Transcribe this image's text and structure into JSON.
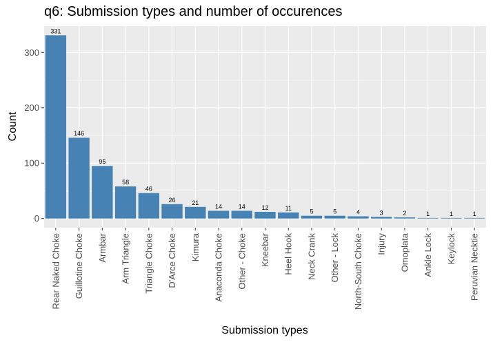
{
  "chart_data": {
    "type": "bar",
    "title": "q6: Submission types and number of occurences",
    "xlabel": "Submission types",
    "ylabel": "Count",
    "categories": [
      "Rear Naked Choke",
      "Guillotine Choke",
      "Armbar",
      "Arm Triangle",
      "Triangle Choke",
      "D'Arce Choke",
      "Kimura",
      "Anaconda Choke",
      "Other - Choke",
      "Kneebar",
      "Heel Hook",
      "Neck Crank",
      "Other - Lock",
      "North-South Choke",
      "Injury",
      "Omoplata",
      "Ankle Lock",
      "Keylock",
      "Peruvian Necktie"
    ],
    "values": [
      331,
      146,
      95,
      58,
      46,
      26,
      21,
      14,
      14,
      12,
      11,
      5,
      5,
      4,
      3,
      2,
      1,
      1,
      1
    ],
    "y_ticks": [
      0,
      100,
      200,
      300
    ],
    "ylim": [
      -16.55,
      347.55
    ],
    "grid": true,
    "bar_color": "#4682B4",
    "panel_background": "#EBEBEB",
    "grid_color": "#FFFFFF"
  }
}
